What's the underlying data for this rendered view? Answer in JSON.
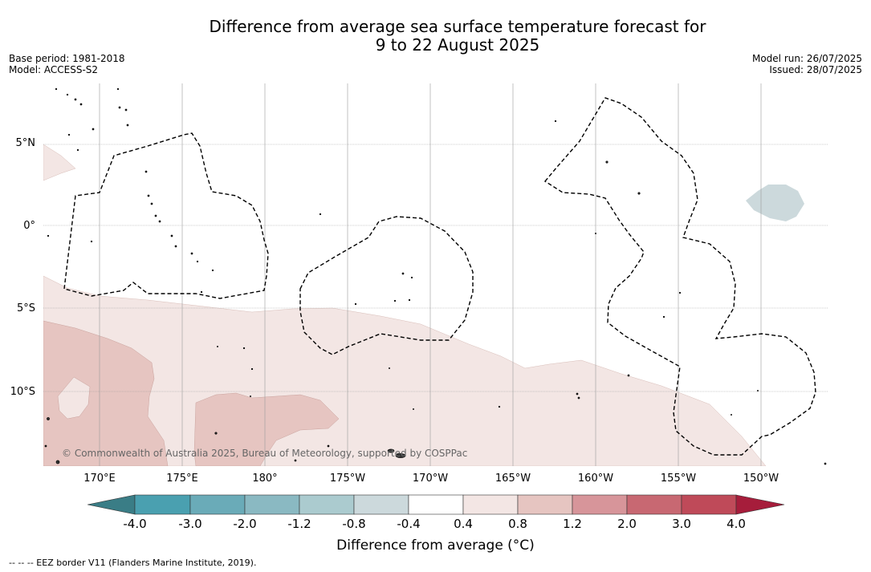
{
  "title": {
    "line1": "Difference from average sea surface temperature forecast for",
    "line2": "9 to 22 August 2025"
  },
  "meta_left": {
    "base_period": "Base period: 1981-2018",
    "model": "Model: ACCESS-S2"
  },
  "meta_right": {
    "model_run": "Model run: 26/07/2025",
    "issued": "Issued: 28/07/2025"
  },
  "map": {
    "lat_labels": [
      "5°N",
      "0°",
      "5°S",
      "10°S"
    ],
    "lon_labels": [
      "170°E",
      "175°E",
      "180°",
      "175°W",
      "170°W",
      "165°W",
      "160°W",
      "155°W",
      "150°W"
    ],
    "copyright": "© Commonwealth of Australia 2025, Bureau of Meteorology, supported by COSPPac",
    "region_colors": {
      "anomaly_0_4_to_0_8": "#f3e6e4",
      "anomaly_0_8_to_1_2": "#e6c5c1",
      "anomaly_neg_0_8_to_neg_0_4": "#ccd9dc"
    }
  },
  "colorbar": {
    "colors": [
      "#3a7d86",
      "#4aa0b0",
      "#6aabb8",
      "#8ab9c2",
      "#abcbcf",
      "#ccd9dc",
      "#ffffff",
      "#f3e6e4",
      "#e6c5c1",
      "#d7959a",
      "#c86872",
      "#bf4a59",
      "#a61d3b"
    ],
    "tick_labels": [
      "-4.0",
      "-3.0",
      "-2.0",
      "-1.2",
      "-0.8",
      "-0.4",
      "0.4",
      "0.8",
      "1.2",
      "2.0",
      "3.0",
      "4.0"
    ],
    "title": "Difference from average (°C)"
  },
  "footnote": "--  --  -- EEZ border V11 (Flanders Marine Institute, 2019)."
}
